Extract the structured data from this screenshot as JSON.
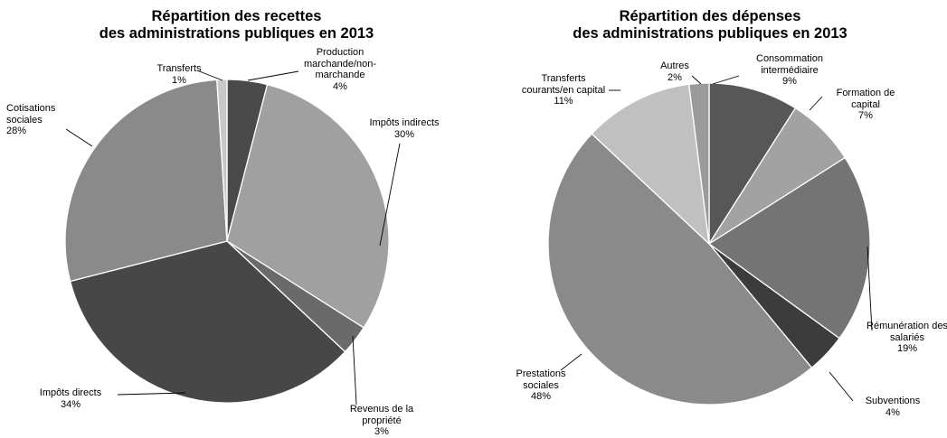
{
  "chart_data": [
    {
      "type": "pie",
      "title": [
        "Répartition des recettes",
        "des administrations publiques en 2013"
      ],
      "start_angle_deg": 0,
      "direction": "clockwise",
      "slices": [
        {
          "label": [
            "Production",
            "marchande/non-",
            "marchande"
          ],
          "value": 4,
          "value_text": "4%",
          "color": "#4a4a4a"
        },
        {
          "label": [
            "Impôts indirects"
          ],
          "value": 30,
          "value_text": "30%",
          "color": "#a0a0a0"
        },
        {
          "label": [
            "Revenus de la",
            "propriété"
          ],
          "value": 3,
          "value_text": "3%",
          "color": "#6a6a6a"
        },
        {
          "label": [
            "Impôts directs"
          ],
          "value": 34,
          "value_text": "34%",
          "color": "#474747"
        },
        {
          "label": [
            "Cotisations",
            "sociales"
          ],
          "value": 28,
          "value_text": "28%",
          "color": "#8a8a8a"
        },
        {
          "label": [
            "Transferts"
          ],
          "value": 1,
          "value_text": "1%",
          "color": "#c8c8c8"
        }
      ]
    },
    {
      "type": "pie",
      "title": [
        "Répartition des dépenses",
        "des administrations publiques en 2013"
      ],
      "start_angle_deg": 0,
      "direction": "clockwise",
      "slices": [
        {
          "label": [
            "Consommation",
            "intermédiaire"
          ],
          "value": 9,
          "value_text": "9%",
          "color": "#575757"
        },
        {
          "label": [
            "Formation de",
            "capital"
          ],
          "value": 7,
          "value_text": "7%",
          "color": "#a2a2a2"
        },
        {
          "label": [
            "Rémunération des",
            "salariés"
          ],
          "value": 19,
          "value_text": "19%",
          "color": "#747474"
        },
        {
          "label": [
            "Subventions"
          ],
          "value": 4,
          "value_text": "4%",
          "color": "#3c3c3c"
        },
        {
          "label": [
            "Prestations",
            "sociales"
          ],
          "value": 48,
          "value_text": "48%",
          "color": "#8a8a8a"
        },
        {
          "label": [
            "Transferts",
            "courants/en capital"
          ],
          "value": 11,
          "value_text": "11%",
          "color": "#c0c0c0"
        },
        {
          "label": [
            "Autres"
          ],
          "value": 2,
          "value_text": "2%",
          "color": "#9a9a9a"
        }
      ]
    }
  ]
}
